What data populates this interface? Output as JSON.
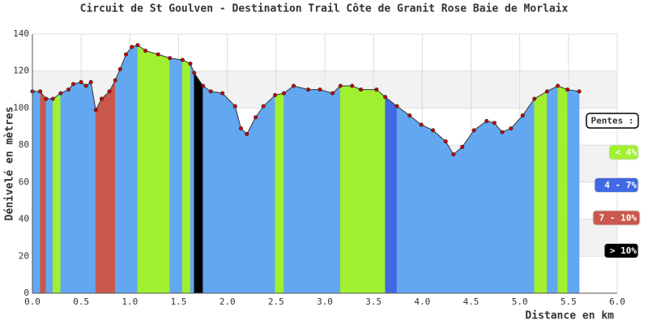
{
  "chart_data": {
    "type": "area",
    "title": "Circuit de St Goulven - Destination Trail Côte de Granit Rose  Baie de Morlaix",
    "x_label": "Distance en km",
    "y_label": "Dénivelé en mètres",
    "x": [
      0,
      0.08,
      0.14,
      0.21,
      0.29,
      0.37,
      0.42,
      0.5,
      0.55,
      0.6,
      0.65,
      0.71,
      0.79,
      0.85,
      0.9,
      0.96,
      1.02,
      1.08,
      1.16,
      1.29,
      1.41,
      1.54,
      1.62,
      1.66,
      1.75,
      1.83,
      1.95,
      2.08,
      2.14,
      2.2,
      2.29,
      2.37,
      2.49,
      2.58,
      2.68,
      2.83,
      2.95,
      3.08,
      3.16,
      3.28,
      3.37,
      3.53,
      3.62,
      3.74,
      3.87,
      3.99,
      4.11,
      4.24,
      4.32,
      4.41,
      4.53,
      4.66,
      4.74,
      4.82,
      4.91,
      5.03,
      5.15,
      5.28,
      5.39,
      5.49,
      5.61
    ],
    "series": [
      {
        "values": [
          109,
          109,
          105,
          105,
          108,
          110,
          113,
          114,
          112,
          114,
          99,
          105,
          109,
          115,
          121,
          129,
          133,
          134,
          131,
          129,
          127,
          126,
          124,
          119,
          112,
          109,
          108,
          101,
          89,
          86,
          95,
          101,
          107,
          108,
          112,
          110,
          110,
          108,
          112,
          112,
          110,
          110,
          106,
          101,
          96,
          91,
          88,
          82,
          75,
          79,
          88,
          93,
          92,
          87,
          89,
          96,
          105,
          109,
          112,
          110,
          109
        ],
        "segment_colors": [
          "#63a7f0",
          "#c8584c",
          "#63a7f0",
          "#a0f030",
          "#63a7f0",
          "#63a7f0",
          "#63a7f0",
          "#63a7f0",
          "#63a7f0",
          "#63a7f0",
          "#c8584c",
          "#c8584c",
          "#c8584c",
          "#63a7f0",
          "#63a7f0",
          "#63a7f0",
          "#63a7f0",
          "#a0f030",
          "#a0f030",
          "#a0f030",
          "#63a7f0",
          "#a0f030",
          "#63a7f0",
          "#000000",
          "#63a7f0",
          "#63a7f0",
          "#63a7f0",
          "#63a7f0",
          "#63a7f0",
          "#63a7f0",
          "#63a7f0",
          "#63a7f0",
          "#a0f030",
          "#63a7f0",
          "#63a7f0",
          "#63a7f0",
          "#63a7f0",
          "#63a7f0",
          "#a0f030",
          "#a0f030",
          "#a0f030",
          "#a0f030",
          "#4169e1",
          "#63a7f0",
          "#63a7f0",
          "#63a7f0",
          "#63a7f0",
          "#63a7f0",
          "#63a7f0",
          "#63a7f0",
          "#63a7f0",
          "#63a7f0",
          "#63a7f0",
          "#63a7f0",
          "#63a7f0",
          "#63a7f0",
          "#a0f030",
          "#63a7f0",
          "#a0f030",
          "#63a7f0"
        ],
        "marker_color": "#cc0000"
      }
    ],
    "xlim": [
      0,
      6
    ],
    "xticks": [
      {
        "value": 0,
        "label": "0.0"
      },
      0.5,
      {
        "value": 1,
        "label": "1.0"
      },
      1.5,
      {
        "value": 2,
        "label": "2.0"
      },
      2.5,
      {
        "value": 3,
        "label": "3.0"
      },
      3.5,
      {
        "value": 4,
        "label": "4.0"
      },
      4.5,
      {
        "value": 5,
        "label": "5.0"
      },
      5.5,
      {
        "value": 6,
        "label": "6.0"
      }
    ],
    "ylim": [
      0,
      140
    ],
    "yticks": [
      0,
      20,
      40,
      60,
      80,
      100,
      120,
      140
    ],
    "grid": true,
    "legend_title": "Pentes :",
    "legend": [
      {
        "name": "< 4%",
        "color": "#a0f030"
      },
      {
        "name": "4 - 7%",
        "color": "#4169e1"
      },
      {
        "name": "7 - 10%",
        "color": "#c8584c"
      },
      {
        "name": "> 10%",
        "color": "#000000"
      }
    ]
  }
}
